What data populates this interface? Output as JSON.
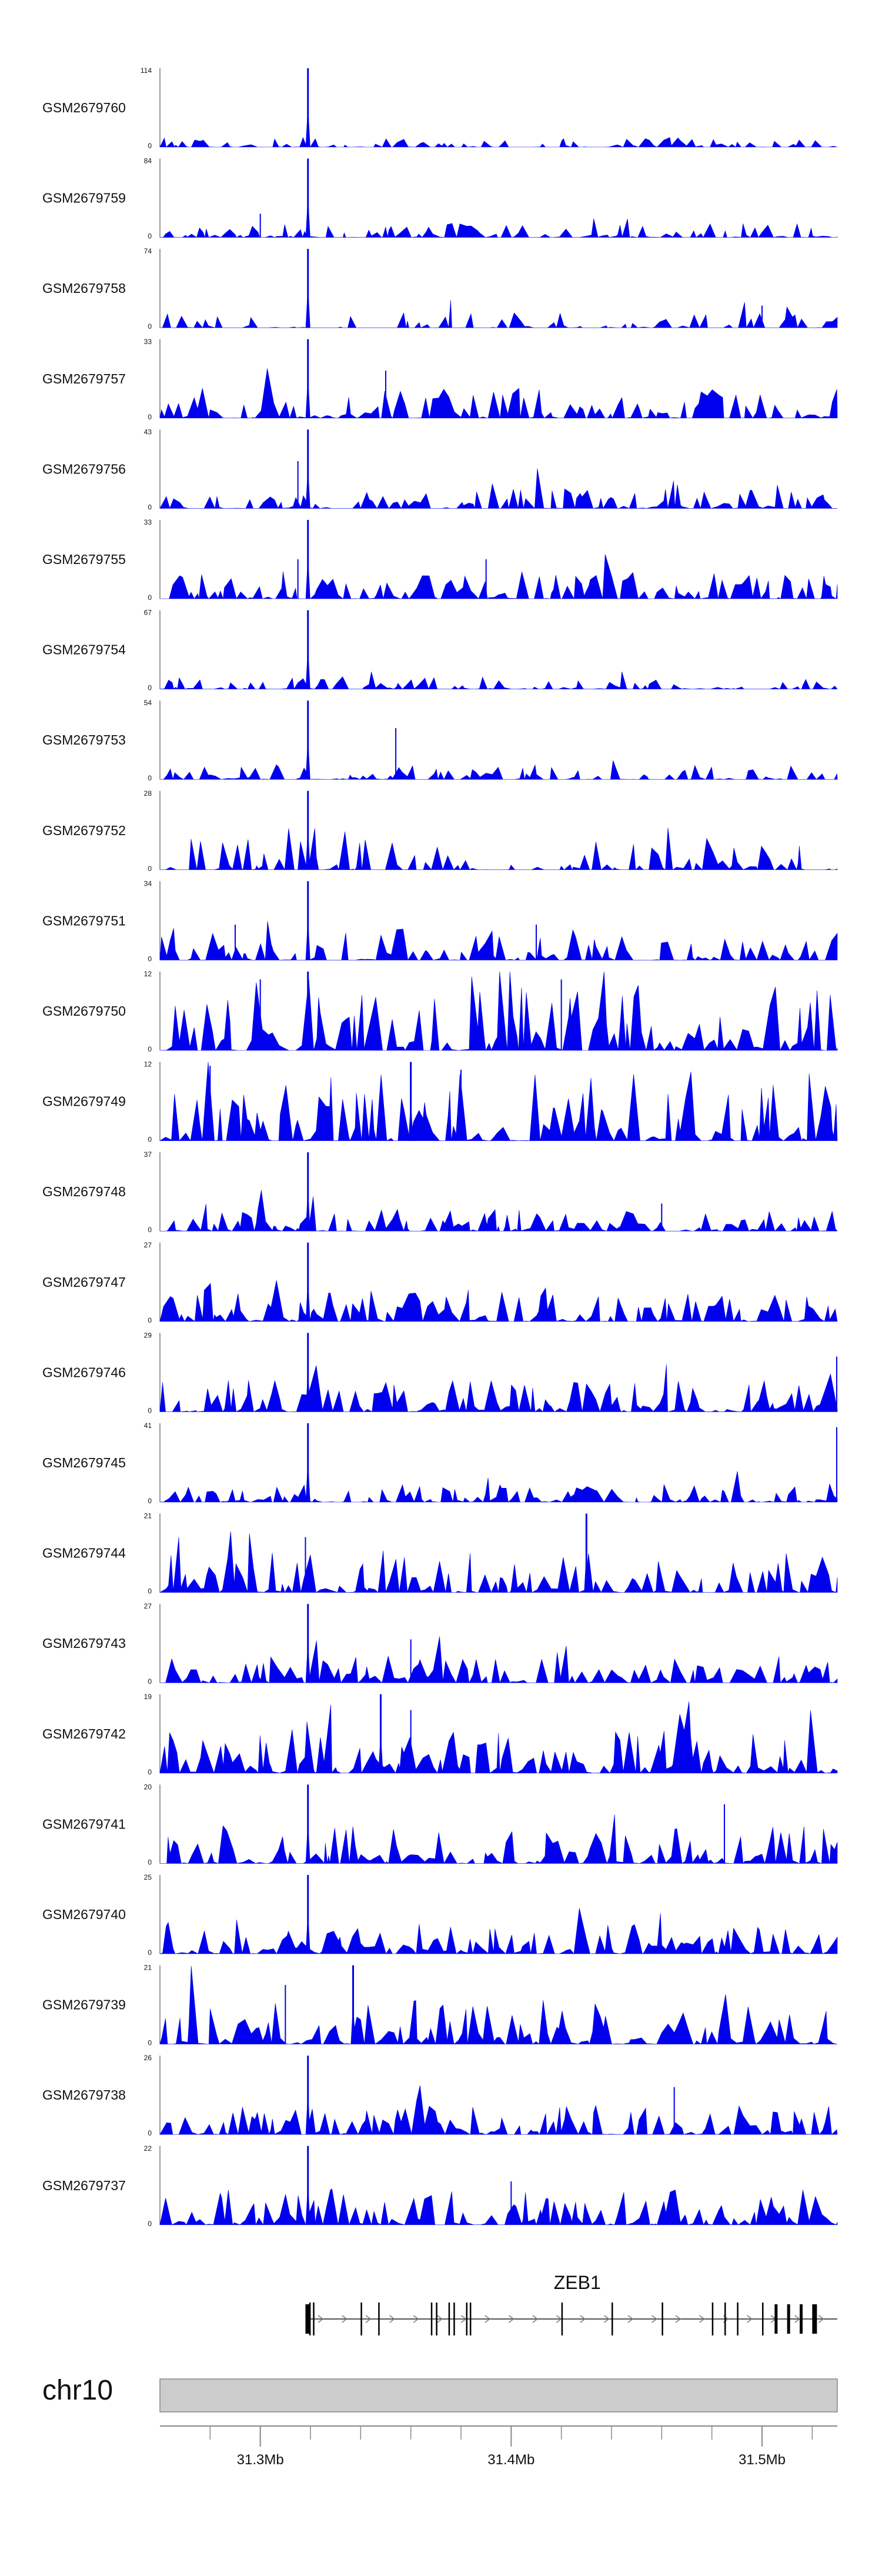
{
  "chart_data": {
    "type": "area",
    "title": "",
    "xlabel": "",
    "ylabel": "",
    "color": "#0000ee",
    "x_unit": "Mb",
    "xlim": [
      31.26,
      31.53
    ],
    "axis": {
      "chromosome": "chr10",
      "ticks": [
        {
          "value": 31.3,
          "label": "31.3Mb"
        },
        {
          "value": 31.4,
          "label": "31.4Mb"
        },
        {
          "value": 31.5,
          "label": "31.5Mb"
        }
      ],
      "minor_ticks": [
        31.28,
        31.3,
        31.32,
        31.34,
        31.36,
        31.38,
        31.4,
        31.42,
        31.44,
        31.46,
        31.48,
        31.5,
        31.52
      ]
    },
    "gene": {
      "name": "ZEB1",
      "start": 31.318,
      "end": 31.53,
      "strand": "+",
      "exons": [
        31.318,
        31.3195,
        31.321,
        31.34,
        31.347,
        31.368,
        31.37,
        31.375,
        31.377,
        31.382,
        31.3835,
        31.42,
        31.44,
        31.46,
        31.48,
        31.485,
        31.49,
        31.5,
        31.505,
        31.51,
        31.515,
        31.52
      ]
    },
    "series": [
      {
        "name": "GSM2679760",
        "ymin": 0,
        "ymax": 114,
        "peak_x": 31.319,
        "base": 0.08,
        "density": 0.55,
        "seed": 1,
        "secondary": []
      },
      {
        "name": "GSM2679759",
        "ymin": 0,
        "ymax": 84,
        "peak_x": 31.319,
        "base": 0.12,
        "density": 0.7,
        "seed": 2,
        "secondary": [
          [
            31.3,
            0.3
          ]
        ]
      },
      {
        "name": "GSM2679758",
        "ymin": 0,
        "ymax": 74,
        "peak_x": 31.319,
        "base": 0.12,
        "density": 0.35,
        "seed": 3,
        "secondary": [
          [
            31.5,
            0.28
          ]
        ]
      },
      {
        "name": "GSM2679757",
        "ymin": 0,
        "ymax": 33,
        "peak_x": 31.319,
        "base": 0.25,
        "density": 0.75,
        "seed": 4,
        "secondary": [
          [
            31.35,
            0.6
          ]
        ]
      },
      {
        "name": "GSM2679756",
        "ymin": 0,
        "ymax": 43,
        "peak_x": 31.319,
        "base": 0.16,
        "density": 0.75,
        "seed": 5,
        "secondary": [
          [
            31.315,
            0.6
          ]
        ]
      },
      {
        "name": "GSM2679755",
        "ymin": 0,
        "ymax": 33,
        "peak_x": 31.319,
        "base": 0.22,
        "density": 0.8,
        "seed": 6,
        "secondary": [
          [
            31.315,
            0.5
          ],
          [
            31.39,
            0.5
          ]
        ]
      },
      {
        "name": "GSM2679754",
        "ymin": 0,
        "ymax": 67,
        "peak_x": 31.319,
        "base": 0.1,
        "density": 0.6,
        "seed": 7,
        "secondary": []
      },
      {
        "name": "GSM2679753",
        "ymin": 0,
        "ymax": 54,
        "peak_x": 31.319,
        "base": 0.12,
        "density": 0.7,
        "seed": 8,
        "secondary": [
          [
            31.354,
            0.65
          ]
        ]
      },
      {
        "name": "GSM2679752",
        "ymin": 0,
        "ymax": 28,
        "peak_x": 31.319,
        "base": 0.25,
        "density": 0.55,
        "seed": 9,
        "secondary": []
      },
      {
        "name": "GSM2679751",
        "ymin": 0,
        "ymax": 34,
        "peak_x": 31.319,
        "base": 0.25,
        "density": 0.7,
        "seed": 10,
        "secondary": [
          [
            31.41,
            0.45
          ],
          [
            31.29,
            0.45
          ]
        ]
      },
      {
        "name": "GSM2679750",
        "ymin": 0,
        "ymax": 12,
        "peak_x": 31.319,
        "base": 0.55,
        "density": 0.85,
        "seed": 11,
        "secondary": [
          [
            31.3,
            0.9
          ],
          [
            31.42,
            0.9
          ]
        ]
      },
      {
        "name": "GSM2679749",
        "ymin": 0,
        "ymax": 12,
        "peak_x": 31.36,
        "base": 0.55,
        "density": 0.85,
        "seed": 12,
        "secondary": [
          [
            31.28,
            0.95
          ],
          [
            31.38,
            0.9
          ]
        ]
      },
      {
        "name": "GSM2679748",
        "ymin": 0,
        "ymax": 37,
        "peak_x": 31.319,
        "base": 0.18,
        "density": 0.8,
        "seed": 13,
        "secondary": [
          [
            31.46,
            0.35
          ]
        ]
      },
      {
        "name": "GSM2679747",
        "ymin": 0,
        "ymax": 27,
        "peak_x": 31.319,
        "base": 0.25,
        "density": 0.85,
        "seed": 14,
        "secondary": []
      },
      {
        "name": "GSM2679746",
        "ymin": 0,
        "ymax": 29,
        "peak_x": 31.319,
        "base": 0.25,
        "density": 0.85,
        "seed": 15,
        "secondary": [
          [
            31.53,
            0.7
          ]
        ]
      },
      {
        "name": "GSM2679745",
        "ymin": 0,
        "ymax": 41,
        "peak_x": 31.319,
        "base": 0.15,
        "density": 0.8,
        "seed": 16,
        "secondary": [
          [
            31.53,
            0.95
          ]
        ]
      },
      {
        "name": "GSM2679744",
        "ymin": 0,
        "ymax": 21,
        "peak_x": 31.43,
        "base": 0.35,
        "density": 0.85,
        "seed": 17,
        "secondary": [
          [
            31.318,
            0.7
          ]
        ]
      },
      {
        "name": "GSM2679743",
        "ymin": 0,
        "ymax": 27,
        "peak_x": 31.319,
        "base": 0.25,
        "density": 0.85,
        "seed": 18,
        "secondary": [
          [
            31.36,
            0.55
          ]
        ]
      },
      {
        "name": "GSM2679742",
        "ymin": 0,
        "ymax": 19,
        "peak_x": 31.348,
        "base": 0.35,
        "density": 0.9,
        "seed": 19,
        "secondary": [
          [
            31.36,
            0.8
          ]
        ]
      },
      {
        "name": "GSM2679741",
        "ymin": 0,
        "ymax": 20,
        "peak_x": 31.319,
        "base": 0.3,
        "density": 0.85,
        "seed": 20,
        "secondary": [
          [
            31.485,
            0.75
          ]
        ]
      },
      {
        "name": "GSM2679740",
        "ymin": 0,
        "ymax": 25,
        "peak_x": 31.319,
        "base": 0.25,
        "density": 0.9,
        "seed": 21,
        "secondary": []
      },
      {
        "name": "GSM2679739",
        "ymin": 0,
        "ymax": 21,
        "peak_x": 31.337,
        "base": 0.35,
        "density": 0.9,
        "seed": 22,
        "secondary": [
          [
            31.31,
            0.75
          ]
        ]
      },
      {
        "name": "GSM2679738",
        "ymin": 0,
        "ymax": 26,
        "peak_x": 31.319,
        "base": 0.25,
        "density": 0.85,
        "seed": 23,
        "secondary": [
          [
            31.465,
            0.6
          ]
        ]
      },
      {
        "name": "GSM2679737",
        "ymin": 0,
        "ymax": 22,
        "peak_x": 31.319,
        "base": 0.28,
        "density": 0.85,
        "seed": 24,
        "secondary": [
          [
            31.4,
            0.55
          ]
        ]
      }
    ]
  }
}
